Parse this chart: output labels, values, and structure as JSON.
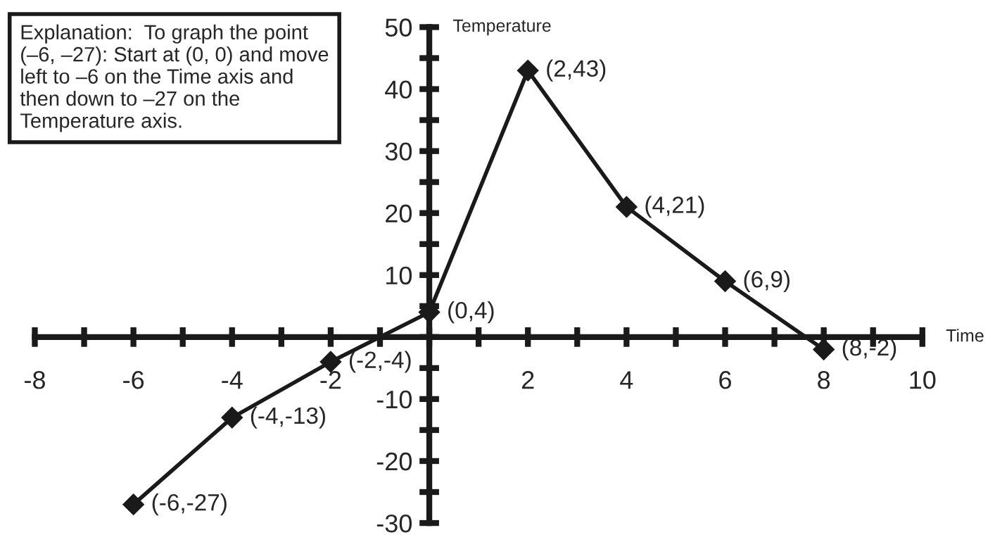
{
  "chart_data": {
    "type": "line",
    "xlabel": "Time",
    "ylabel": "Temperature",
    "x": [
      -6,
      -4,
      -2,
      0,
      2,
      4,
      6,
      8
    ],
    "series": [
      {
        "color": "#1a1a1a",
        "values": [
          -27,
          -13,
          -4,
          4,
          43,
          21,
          9,
          -2
        ]
      }
    ],
    "xlim": [
      -8,
      10
    ],
    "ylim": [
      -30,
      50
    ],
    "xticks": [
      -8,
      {
        "value": -7,
        "label": null
      },
      -6,
      {
        "value": -5,
        "label": null
      },
      -4,
      {
        "value": -3,
        "label": null
      },
      -2,
      {
        "value": -1,
        "label": null
      },
      {
        "value": 0,
        "label": null
      },
      {
        "value": 1,
        "label": null
      },
      2,
      {
        "value": 3,
        "label": null
      },
      4,
      {
        "value": 5,
        "label": null
      },
      6,
      {
        "value": 7,
        "label": null
      },
      8,
      {
        "value": 9,
        "label": null
      },
      10
    ],
    "yticks": [
      -30,
      {
        "value": -25,
        "label": null
      },
      -20,
      {
        "value": -15,
        "label": null
      },
      -10,
      {
        "value": -5,
        "label": null
      },
      {
        "value": 0,
        "label": null
      },
      {
        "value": 5,
        "label": null
      },
      10,
      {
        "value": 15,
        "label": null
      },
      20,
      {
        "value": 25,
        "label": null
      },
      30,
      {
        "value": 35,
        "label": null
      },
      40,
      {
        "value": 45,
        "label": null
      },
      50
    ],
    "marker": "diamond",
    "line_style": "solid",
    "grid": false,
    "legend": false,
    "annotations": [
      "Explanation:  To graph the point (–6, –27): Start at (0, 0) and move left to –6 on the Time axis and then down to –27 on the Temperature axis.",
      {
        "text": "(-6,-27)",
        "x": -6,
        "y": -27
      },
      {
        "text": "(-4,-13)",
        "x": -4,
        "y": -13
      },
      {
        "text": "(-2,-4)",
        "x": -2,
        "y": -4
      },
      {
        "text": "(0,4)",
        "x": 0,
        "y": 4
      },
      {
        "text": "(2,43)",
        "x": 2,
        "y": 43
      },
      {
        "text": "(4,21)",
        "x": 4,
        "y": 21
      },
      {
        "text": "(6,9)",
        "x": 6,
        "y": 9
      },
      {
        "text": "(8,-2)",
        "x": 8,
        "y": -2
      }
    ]
  }
}
